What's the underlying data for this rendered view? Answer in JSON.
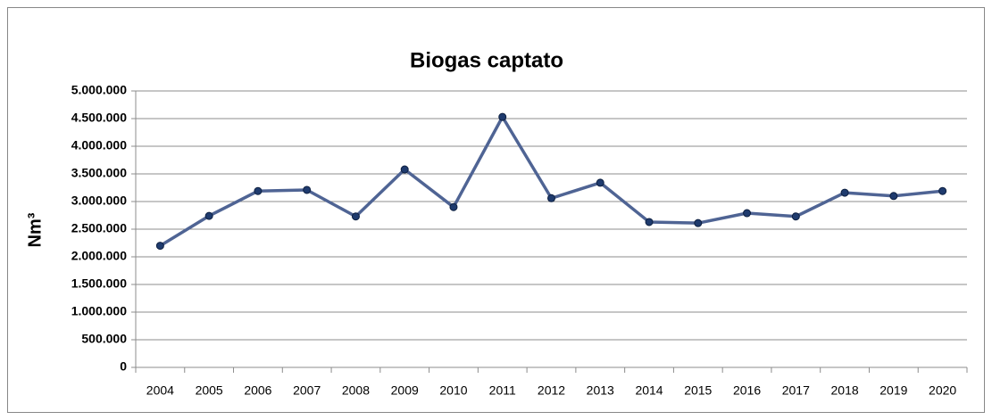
{
  "chart_data": {
    "type": "line",
    "title": "Biogas captato",
    "y_label": "Nm³",
    "categories": [
      "2004",
      "2005",
      "2006",
      "2007",
      "2008",
      "2009",
      "2010",
      "2011",
      "2012",
      "2013",
      "2014",
      "2015",
      "2016",
      "2017",
      "2018",
      "2019",
      "2020"
    ],
    "series": [
      {
        "name": "Biogas captato",
        "color": "#4f6494",
        "marker_color": "#1f3b6e",
        "values": [
          2200000,
          2740000,
          3190000,
          3210000,
          2730000,
          3580000,
          2900000,
          4530000,
          3060000,
          3340000,
          2630000,
          2610000,
          2790000,
          2730000,
          3160000,
          3100000,
          3190000
        ]
      }
    ],
    "ylim": [
      0,
      5000000
    ],
    "yticks": [
      0,
      {
        "value": 500000,
        "label": "500.000"
      },
      {
        "value": 1000000,
        "label": "1.000.000"
      },
      {
        "value": 1500000,
        "label": "1.500.000"
      },
      {
        "value": 2000000,
        "label": "2.000.000"
      },
      {
        "value": 2500000,
        "label": "2.500.000"
      },
      {
        "value": 3000000,
        "label": "3.000.000"
      },
      {
        "value": 3500000,
        "label": "3.500.000"
      },
      {
        "value": 4000000,
        "label": "4.000.000"
      },
      {
        "value": 4500000,
        "label": "4.500.000"
      },
      {
        "value": 5000000,
        "label": "5.000.000"
      }
    ],
    "grid": true
  }
}
